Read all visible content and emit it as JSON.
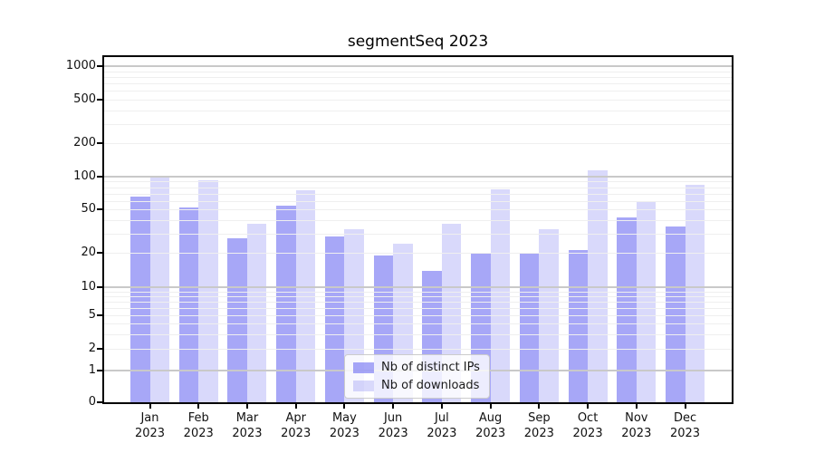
{
  "title": "segmentSeq 2023",
  "chart_data": {
    "type": "bar",
    "title": "segmentSeq 2023",
    "categories": [
      "Jan 2023",
      "Feb 2023",
      "Mar 2023",
      "Apr 2023",
      "May 2023",
      "Jun 2023",
      "Jul 2023",
      "Aug 2023",
      "Sep 2023",
      "Oct 2023",
      "Nov 2023",
      "Dec 2023"
    ],
    "x_tick_month": [
      "Jan",
      "Feb",
      "Mar",
      "Apr",
      "May",
      "Jun",
      "Jul",
      "Aug",
      "Sep",
      "Oct",
      "Nov",
      "Dec"
    ],
    "x_tick_year": "2023",
    "series": [
      {
        "name": "Nb of distinct IPs",
        "color": "rgba(95,95,240,0.55)",
        "values": [
          65,
          52,
          27,
          54,
          28,
          19,
          14,
          20,
          20,
          21,
          42,
          35
        ]
      },
      {
        "name": "Nb of downloads",
        "color": "rgba(95,95,240,0.24)",
        "values": [
          102,
          92,
          37,
          75,
          33,
          24,
          37,
          76,
          33,
          115,
          59,
          84
        ]
      }
    ],
    "y_ticks": [
      0,
      1,
      2,
      5,
      10,
      20,
      50,
      100,
      200,
      500,
      1000
    ],
    "y_axis_type": "log scale with 0 baseline",
    "ylim": [
      0,
      1300
    ],
    "xlabel": "",
    "ylabel": "",
    "grid": "horizontal, major and minor",
    "legend_position": "inside bottom center",
    "colors": {
      "major_grid": "#c9c9c9",
      "minor_grid": "#efefef",
      "axis": "#000000",
      "text": "#111111"
    }
  }
}
